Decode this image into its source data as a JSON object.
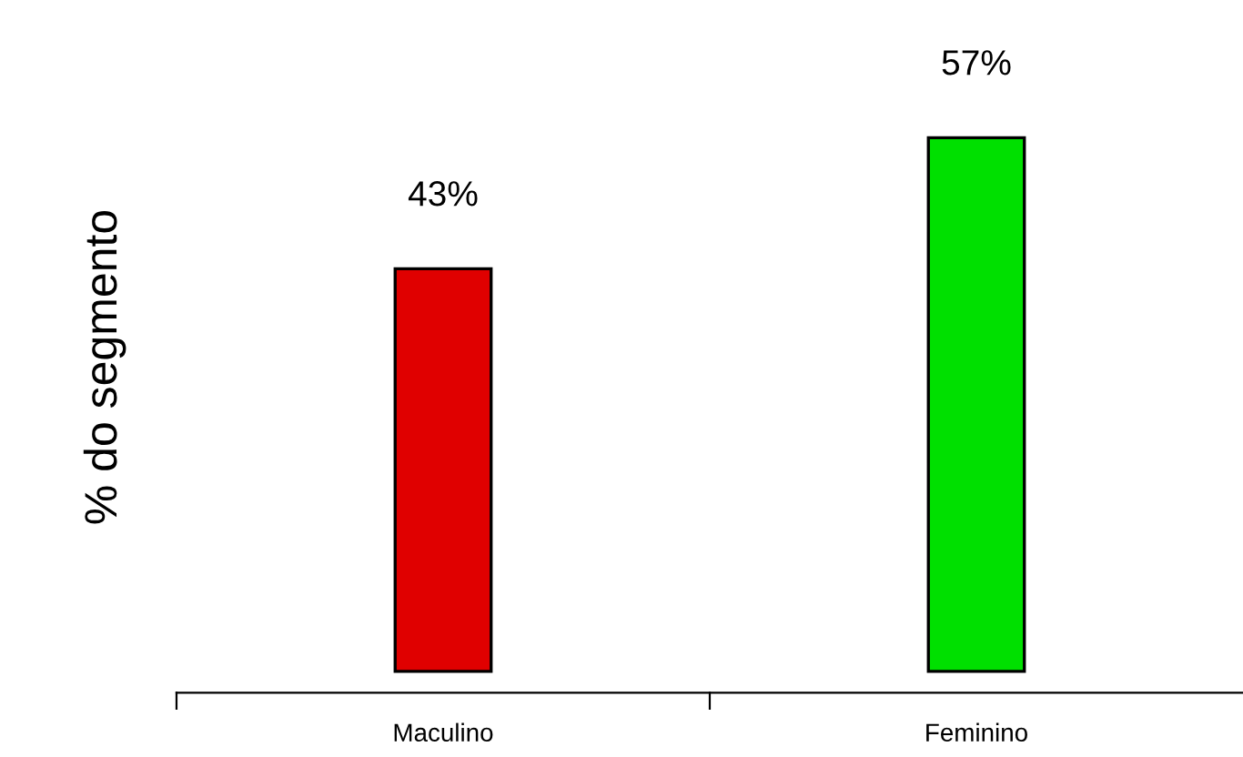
{
  "chart_data": {
    "type": "bar",
    "ylabel": "% do segmento",
    "categories": [
      "Maculino",
      "Feminino"
    ],
    "values": [
      43,
      57
    ],
    "colors": [
      "#e00000",
      "#00e000"
    ],
    "data_labels": true,
    "value_labels": [
      "43%",
      "57%"
    ],
    "grid": false,
    "legend": false
  }
}
